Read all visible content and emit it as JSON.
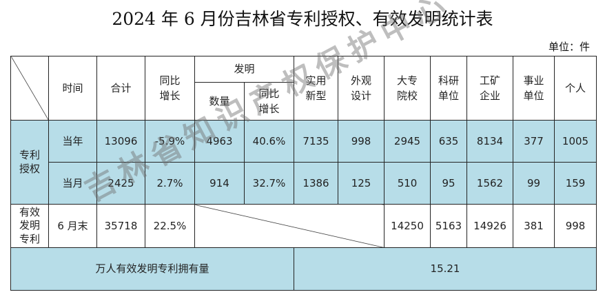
{
  "title": "2024 年 6 月份吉林省专利授权、有效发明统计表",
  "unit": "单位：件",
  "headers": {
    "time": "时间",
    "total": "合计",
    "yoy": "同比\n增长",
    "invention": "发明",
    "inv_count": "数量",
    "inv_yoy": "同比\n增长",
    "utility": "实用\n新型",
    "design": "外观\n设计",
    "university": "大专\n院校",
    "research": "科研\n单位",
    "industry": "工矿\n企业",
    "institution": "事业\n单位",
    "individual": "个人"
  },
  "group_grant": "专利\n授权",
  "group_valid": "有效\n发明\n专利",
  "rows": [
    {
      "time": "当年",
      "total": "13096",
      "yoy": "-5.9%",
      "inv_count": "4963",
      "inv_yoy": "40.6%",
      "utility": "7135",
      "design": "998",
      "university": "2945",
      "research": "635",
      "industry": "8134",
      "institution": "377",
      "individual": "1005"
    },
    {
      "time": "当月",
      "total": "2425",
      "yoy": "2.7%",
      "inv_count": "914",
      "inv_yoy": "32.7%",
      "utility": "1386",
      "design": "125",
      "university": "510",
      "research": "95",
      "industry": "1562",
      "institution": "99",
      "individual": "159"
    },
    {
      "time": "6 月末",
      "total": "35718",
      "yoy": "22.5%",
      "university": "14250",
      "research": "5163",
      "industry": "14926",
      "institution": "381",
      "individual": "998"
    }
  ],
  "per_capita_label": "万人有效发明专利拥有量",
  "per_capita_value": "15.21",
  "watermark": "吉林省知识产权保护中心"
}
